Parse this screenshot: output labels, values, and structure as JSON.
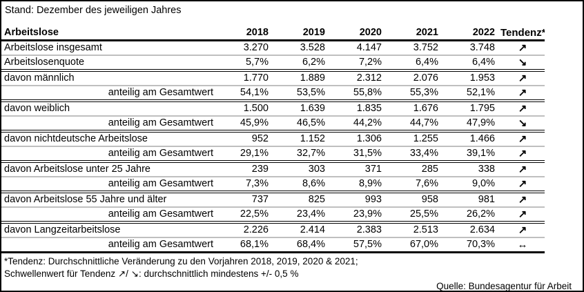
{
  "title": "Stand: Dezember des jeweiligen Jahres",
  "table": {
    "header": {
      "label": "Arbeitslose",
      "years": [
        "2018",
        "2019",
        "2020",
        "2021",
        "2022"
      ],
      "tendenz": "Tendenz*"
    },
    "rows": [
      {
        "label": "Arbeitslose insgesamt",
        "indent": false,
        "values": [
          "3.270",
          "3.528",
          "4.147",
          "3.752",
          "3.748"
        ],
        "tendenz": "↗",
        "sep": "gray"
      },
      {
        "label": "Arbeitslosenquote",
        "indent": false,
        "values": [
          "5,7%",
          "6,2%",
          "7,2%",
          "6,4%",
          "6,4%"
        ],
        "tendenz": "↘",
        "sep": "double"
      },
      {
        "label": "davon männlich",
        "indent": false,
        "values": [
          "1.770",
          "1.889",
          "2.312",
          "2.076",
          "1.953"
        ],
        "tendenz": "↗",
        "sep": "gray"
      },
      {
        "label": "anteilig am Gesamtwert",
        "indent": true,
        "values": [
          "54,1%",
          "53,5%",
          "55,8%",
          "55,3%",
          "52,1%"
        ],
        "tendenz": "↗",
        "sep": "double"
      },
      {
        "label": "davon weiblich",
        "indent": false,
        "values": [
          "1.500",
          "1.639",
          "1.835",
          "1.676",
          "1.795"
        ],
        "tendenz": "↗",
        "sep": "gray"
      },
      {
        "label": "anteilig am Gesamtwert",
        "indent": true,
        "values": [
          "45,9%",
          "46,5%",
          "44,2%",
          "44,7%",
          "47,9%"
        ],
        "tendenz": "↘",
        "sep": "double"
      },
      {
        "label": "davon nichtdeutsche Arbeitslose",
        "indent": false,
        "values": [
          "952",
          "1.152",
          "1.306",
          "1.255",
          "1.466"
        ],
        "tendenz": "↗",
        "sep": "gray"
      },
      {
        "label": "anteilig am Gesamtwert",
        "indent": true,
        "values": [
          "29,1%",
          "32,7%",
          "31,5%",
          "33,4%",
          "39,1%"
        ],
        "tendenz": "↗",
        "sep": "double"
      },
      {
        "label": "davon Arbeitslose unter 25 Jahre",
        "indent": false,
        "values": [
          "239",
          "303",
          "371",
          "285",
          "338"
        ],
        "tendenz": "↗",
        "sep": "gray"
      },
      {
        "label": "anteilig am Gesamtwert",
        "indent": true,
        "values": [
          "7,3%",
          "8,6%",
          "8,9%",
          "7,6%",
          "9,0%"
        ],
        "tendenz": "↗",
        "sep": "double"
      },
      {
        "label": "davon Arbeitslose 55 Jahre und älter",
        "indent": false,
        "values": [
          "737",
          "825",
          "993",
          "958",
          "981"
        ],
        "tendenz": "↗",
        "sep": "gray"
      },
      {
        "label": "anteilig am Gesamtwert",
        "indent": true,
        "values": [
          "22,5%",
          "23,4%",
          "23,9%",
          "25,5%",
          "26,2%"
        ],
        "tendenz": "↗",
        "sep": "double"
      },
      {
        "label": "davon Langzeitarbeitslose",
        "indent": false,
        "values": [
          "2.226",
          "2.414",
          "2.383",
          "2.513",
          "2.634"
        ],
        "tendenz": "↗",
        "sep": "gray"
      },
      {
        "label": "anteilig am Gesamtwert",
        "indent": true,
        "values": [
          "68,1%",
          "68,4%",
          "57,5%",
          "67,0%",
          "70,3%"
        ],
        "tendenz": "↔",
        "sep": "thick"
      }
    ]
  },
  "footnotes": [
    "*Tendenz: Durchschnittliche Veränderung zu den Vorjahren 2018, 2019, 2020 & 2021;",
    "Schwellenwert für Tendenz ↗/ ↘: durchschnittlich mindestens +/- 0,5 %"
  ],
  "source": "Quelle: Bundesagentur für Arbeit",
  "colors": {
    "grid_gray": "#bfbfbf",
    "grid_black": "#000000",
    "background": "#ffffff",
    "text": "#000000"
  }
}
